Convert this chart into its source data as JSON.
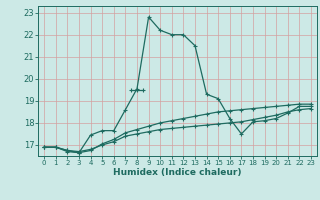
{
  "xlabel": "Humidex (Indice chaleur)",
  "xlim": [
    -0.5,
    23.5
  ],
  "ylim": [
    16.5,
    23.3
  ],
  "yticks": [
    17,
    18,
    19,
    20,
    21,
    22,
    23
  ],
  "xticks": [
    0,
    1,
    2,
    3,
    4,
    5,
    6,
    7,
    8,
    9,
    10,
    11,
    12,
    13,
    14,
    15,
    16,
    17,
    18,
    19,
    20,
    21,
    22,
    23
  ],
  "bg_color": "#cce9e6",
  "grid_color": "#b0d4d0",
  "line_color": "#1e6b60",
  "lines": [
    {
      "x": [
        0,
        1,
        2,
        3,
        4,
        5,
        6,
        7,
        8,
        9,
        10,
        11,
        12,
        13,
        14,
        15,
        16,
        17,
        18,
        19,
        20,
        21,
        22,
        23
      ],
      "y": [
        16.9,
        16.9,
        16.75,
        16.7,
        16.8,
        17.0,
        17.15,
        17.4,
        17.5,
        17.6,
        17.7,
        17.75,
        17.8,
        17.85,
        17.9,
        17.95,
        18.0,
        18.05,
        18.15,
        18.25,
        18.35,
        18.5,
        18.6,
        18.65
      ]
    },
    {
      "x": [
        0,
        1,
        2,
        3,
        4,
        5,
        6,
        7,
        8,
        9,
        10,
        11,
        12,
        13,
        14,
        15,
        16,
        17,
        18,
        19,
        20,
        21,
        22,
        23
      ],
      "y": [
        16.9,
        16.9,
        16.75,
        16.65,
        16.75,
        17.05,
        17.25,
        17.55,
        17.7,
        17.85,
        18.0,
        18.1,
        18.2,
        18.3,
        18.4,
        18.5,
        18.55,
        18.6,
        18.65,
        18.7,
        18.75,
        18.8,
        18.85,
        18.85
      ]
    },
    {
      "x": [
        0,
        1,
        2,
        3,
        4,
        5,
        6,
        7,
        8,
        9,
        10,
        11,
        12,
        13,
        14,
        15,
        16,
        17,
        18,
        19,
        20,
        21,
        22,
        23
      ],
      "y": [
        16.9,
        16.9,
        16.7,
        16.65,
        17.45,
        17.65,
        17.65,
        18.6,
        19.55,
        22.8,
        22.2,
        22.0,
        22.0,
        21.5,
        19.3,
        19.1,
        18.2,
        17.5,
        18.05,
        18.1,
        18.2,
        18.45,
        18.75,
        18.75
      ]
    },
    {
      "x": [
        7.5,
        8,
        8.5
      ],
      "y": [
        19.5,
        19.5,
        19.5
      ]
    }
  ]
}
